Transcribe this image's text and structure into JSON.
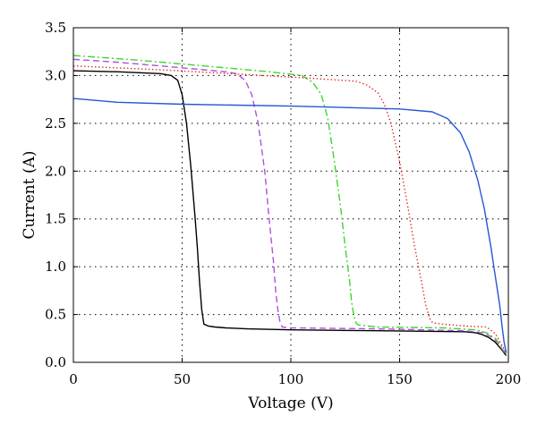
{
  "chart_data": {
    "type": "line",
    "title": "",
    "xlabel": "Voltage (V)",
    "ylabel": "Current (A)",
    "xlim": [
      0,
      200
    ],
    "ylim": [
      0,
      3.5
    ],
    "x_ticks": [
      "0",
      "50",
      "100",
      "150",
      "200"
    ],
    "y_ticks": [
      "0.0",
      "0.5",
      "1.0",
      "1.5",
      "2.0",
      "2.5",
      "3.0",
      "3.5"
    ],
    "grid": true,
    "series": [
      {
        "color": "#000000",
        "dash": "solid",
        "x": [
          0,
          20,
          40,
          45,
          48,
          50,
          52,
          54,
          56,
          57,
          58,
          59,
          60,
          62,
          65,
          70,
          80,
          100,
          140,
          180,
          185,
          188,
          191,
          194,
          197,
          199
        ],
        "y": [
          3.05,
          3.04,
          3.02,
          3.0,
          2.95,
          2.8,
          2.5,
          2.05,
          1.5,
          1.2,
          0.85,
          0.55,
          0.4,
          0.38,
          0.37,
          0.36,
          0.35,
          0.34,
          0.33,
          0.32,
          0.31,
          0.29,
          0.26,
          0.21,
          0.13,
          0.07
        ]
      },
      {
        "color": "#b04fe0",
        "dash": "dashed",
        "x": [
          0,
          20,
          40,
          60,
          70,
          75,
          79,
          82,
          85,
          88,
          90,
          92,
          93,
          94,
          95,
          96,
          100,
          140,
          180,
          188,
          192,
          195,
          197,
          199
        ],
        "y": [
          3.17,
          3.14,
          3.1,
          3.06,
          3.04,
          3.02,
          2.95,
          2.8,
          2.5,
          2.0,
          1.5,
          1.05,
          0.75,
          0.55,
          0.42,
          0.37,
          0.36,
          0.35,
          0.33,
          0.31,
          0.27,
          0.21,
          0.14,
          0.08
        ]
      },
      {
        "color": "#3cd82a",
        "dash": "dashdot",
        "x": [
          0,
          30,
          60,
          90,
          105,
          110,
          114,
          117,
          120,
          123,
          125,
          127,
          128,
          129,
          130,
          131,
          140,
          170,
          185,
          190,
          194,
          197,
          199
        ],
        "y": [
          3.21,
          3.16,
          3.1,
          3.04,
          3.0,
          2.93,
          2.8,
          2.55,
          2.1,
          1.6,
          1.2,
          0.85,
          0.62,
          0.48,
          0.41,
          0.39,
          0.37,
          0.36,
          0.34,
          0.31,
          0.25,
          0.16,
          0.09
        ]
      },
      {
        "color": "#e03030",
        "dash": "dotted",
        "x": [
          0,
          40,
          80,
          110,
          130,
          135,
          140,
          143,
          146,
          150,
          154,
          157,
          160,
          162,
          164,
          165,
          166,
          170,
          180,
          190,
          194,
          197,
          199
        ],
        "y": [
          3.1,
          3.06,
          3.01,
          2.97,
          2.94,
          2.9,
          2.82,
          2.7,
          2.5,
          2.1,
          1.6,
          1.2,
          0.85,
          0.6,
          0.45,
          0.42,
          0.41,
          0.4,
          0.38,
          0.37,
          0.3,
          0.18,
          0.1
        ]
      },
      {
        "color": "#2457d6",
        "dash": "solid",
        "x": [
          0,
          20,
          50,
          100,
          150,
          165,
          172,
          178,
          182,
          186,
          189,
          192,
          194,
          196,
          197,
          198,
          199
        ],
        "y": [
          2.76,
          2.72,
          2.7,
          2.68,
          2.65,
          2.62,
          2.55,
          2.4,
          2.2,
          1.9,
          1.6,
          1.2,
          0.9,
          0.6,
          0.4,
          0.22,
          0.1
        ]
      }
    ]
  }
}
